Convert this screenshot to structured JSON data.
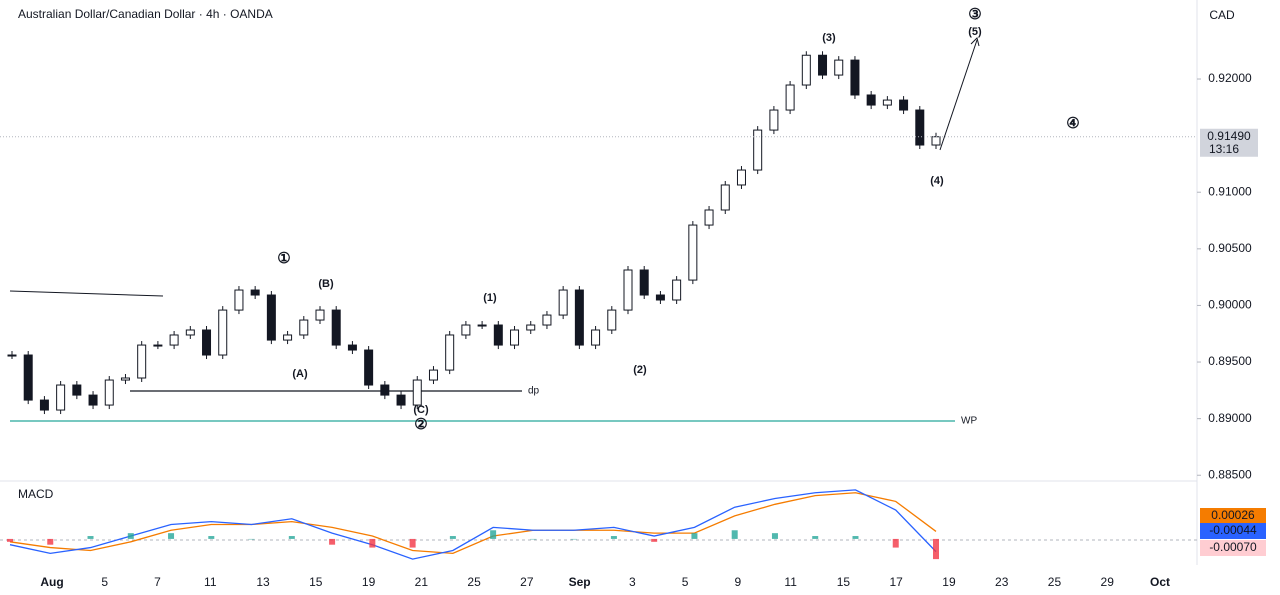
{
  "header": {
    "title": "Australian Dollar/Canadian Dollar · 4h · OANDA",
    "currency": "CAD"
  },
  "chart_data": [
    {
      "type": "candlestick",
      "closes": [
        0.89562,
        0.89164,
        0.89076,
        0.89297,
        0.89208,
        0.8912,
        0.89341,
        0.89359,
        0.8965,
        0.8965,
        0.89739,
        0.89783,
        0.89562,
        0.89959,
        0.90136,
        0.90092,
        0.89694,
        0.89739,
        0.89871,
        0.89959,
        0.8965,
        0.89606,
        0.89297,
        0.89208,
        0.8912,
        0.89341,
        0.89429,
        0.89739,
        0.89827,
        0.89827,
        0.8965,
        0.89783,
        0.89827,
        0.89915,
        0.90136,
        0.8965,
        0.89783,
        0.89959,
        0.90313,
        0.90092,
        0.90048,
        0.90224,
        0.9071,
        0.90843,
        0.91064,
        0.91196,
        0.91549,
        0.91726,
        0.91947,
        0.9221,
        0.92035,
        0.92167,
        0.91859,
        0.9177,
        0.91814,
        0.91726,
        0.91417,
        0.9149
      ],
      "up_color": "#ffffff",
      "down_color": "#131722",
      "ylim": [
        0.88458,
        0.92698
      ],
      "yticks": [
        {
          "value": 0.885,
          "label": "0.88500"
        },
        {
          "value": 0.89,
          "label": "0.89000"
        },
        {
          "value": 0.895,
          "label": "0.89500"
        },
        {
          "value": 0.9,
          "label": "0.90000"
        },
        {
          "value": 0.905,
          "label": "0.90500"
        },
        {
          "value": 0.91,
          "label": "0.91000"
        },
        {
          "value": 0.92,
          "label": "0.92000"
        }
      ],
      "last_price": {
        "value": 0.9149,
        "label": "0.91490"
      },
      "countdown": "13:16",
      "levels": [
        {
          "label": "dp",
          "value": 0.89244,
          "color": "#2962ff",
          "line": "#131722"
        },
        {
          "label": "WP",
          "value": 0.88979,
          "color": "#2962ff",
          "line": "#26a69a"
        }
      ],
      "annotations": [
        {
          "text": "①",
          "color": "#131722"
        },
        {
          "text": "(B)",
          "color": "#f23645"
        },
        {
          "text": "(A)",
          "color": "#f23645"
        },
        {
          "text": "(C)",
          "color": "#f23645"
        },
        {
          "text": "②",
          "color": "#131722"
        },
        {
          "text": "(1)",
          "color": "#131722"
        },
        {
          "text": "(2)",
          "color": "#131722"
        },
        {
          "text": "(3)",
          "color": "#131722"
        },
        {
          "text": "③",
          "color": "#131722"
        },
        {
          "text": "(5)",
          "color": "#131722"
        },
        {
          "text": "④",
          "color": "#131722"
        },
        {
          "text": "(4)",
          "color": "#131722"
        }
      ],
      "x_labels": [
        "Aug",
        "5",
        "7",
        "11",
        "13",
        "15",
        "19",
        "21",
        "25",
        "27",
        "Sep",
        "3",
        "5",
        "9",
        "11",
        "15",
        "17",
        "19",
        "23",
        "25",
        "29",
        "Oct"
      ]
    },
    {
      "type": "macd",
      "title": "MACD",
      "ylim": [
        -0.0008,
        0.0018
      ],
      "series": [
        {
          "kind": "line",
          "color": "#f57c00",
          "values": [
            -0.0001,
            -0.0003,
            -0.0004,
            -0.0001,
            0.0003,
            0.0005,
            0.0005,
            0.0006,
            0.0004,
            0.0001,
            -0.0004,
            -0.0005,
            0.0001,
            0.0003,
            0.0003,
            0.0003,
            0.0002,
            0.0002,
            0.0008,
            0.0012,
            0.0015,
            0.0016,
            0.0013,
            0.00026
          ]
        },
        {
          "kind": "line",
          "color": "#2962ff",
          "values": [
            -0.0002,
            -0.0005,
            -0.0003,
            0.0001,
            0.0005,
            0.0006,
            0.0005,
            0.0007,
            0.0002,
            -0.0002,
            -0.0007,
            -0.0004,
            0.0004,
            0.0003,
            0.0003,
            0.0004,
            0.0001,
            0.0004,
            0.0011,
            0.0014,
            0.0016,
            0.0017,
            0.001,
            -0.00044
          ]
        },
        {
          "kind": "histogram",
          "color": "#f23645",
          "up_color": "#26a69a",
          "values": [
            -0.0001,
            -0.0002,
            0.0001,
            0.0002,
            0.0002,
            0.0001,
            0,
            0.0001,
            -0.0002,
            -0.0003,
            -0.0003,
            0.0001,
            0.0003,
            0,
            0,
            0.0001,
            -0.0001,
            0.0002,
            0.0003,
            0.0002,
            0.0001,
            0.0001,
            -0.0003,
            -0.0007
          ],
          "value_labels": [
            null,
            null,
            null,
            null,
            null,
            null,
            null,
            null,
            null,
            null,
            null,
            null,
            null,
            null,
            null,
            null,
            null,
            null,
            null,
            null,
            null,
            null,
            null,
            "-0.00070"
          ]
        }
      ]
    }
  ]
}
